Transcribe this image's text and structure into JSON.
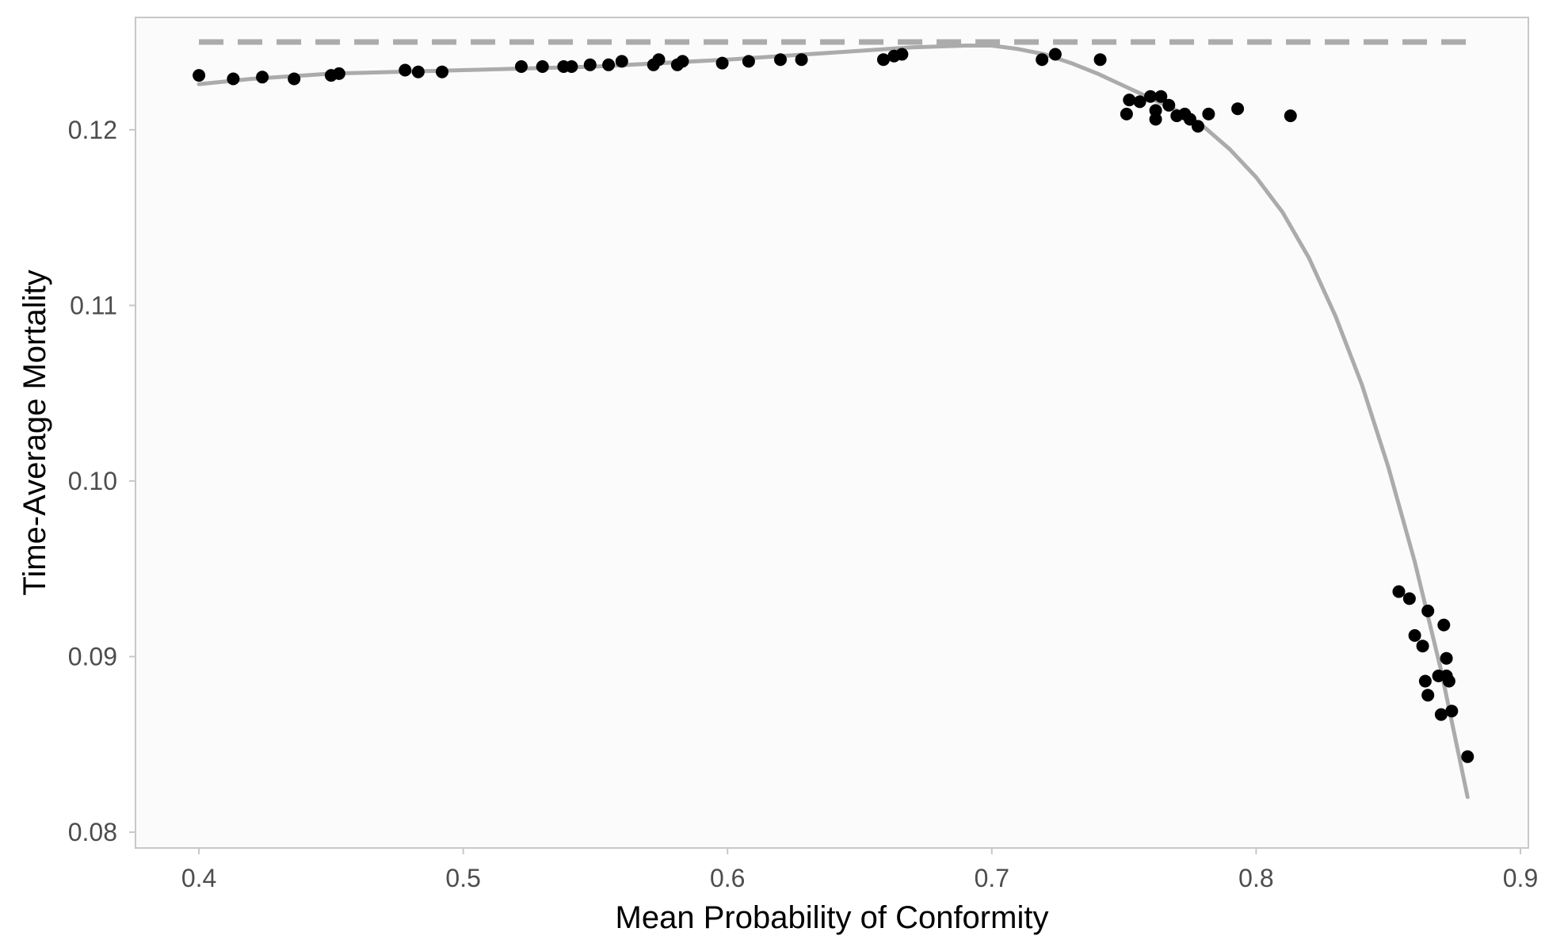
{
  "chart_data": {
    "type": "scatter",
    "title": "",
    "xlabel": "Mean Probability of Conformity",
    "ylabel": "Time-Average Mortality",
    "xlim": [
      0.376,
      0.903
    ],
    "ylim": [
      0.0791,
      0.1264
    ],
    "x_ticks": [
      {
        "value": 0.4,
        "label": "0.4"
      },
      {
        "value": 0.5,
        "label": "0.5"
      },
      {
        "value": 0.6,
        "label": "0.6"
      },
      {
        "value": 0.7,
        "label": "0.7"
      },
      {
        "value": 0.8,
        "label": "0.8"
      },
      {
        "value": 0.9,
        "label": "0.9"
      }
    ],
    "y_ticks": [
      {
        "value": 0.08,
        "label": "0.08"
      },
      {
        "value": 0.09,
        "label": "0.09"
      },
      {
        "value": 0.1,
        "label": "0.10"
      },
      {
        "value": 0.11,
        "label": "0.11"
      },
      {
        "value": 0.12,
        "label": "0.12"
      }
    ],
    "grid": false,
    "colors": {
      "panel_background": "#fbfbfb",
      "panel_border": "#c8c8c8",
      "points": "#000000",
      "fit_line": "#ababab",
      "reference_line": "#ababab"
    },
    "reference_line": {
      "style": "dashed",
      "y": 0.125,
      "x_start": 0.4,
      "x_end": 0.88
    },
    "fit_line": {
      "style": "solid",
      "x": [
        0.4,
        0.42,
        0.45,
        0.5,
        0.55,
        0.6,
        0.65,
        0.67,
        0.69,
        0.7,
        0.71,
        0.72,
        0.73,
        0.74,
        0.75,
        0.76,
        0.77,
        0.78,
        0.79,
        0.8,
        0.81,
        0.82,
        0.83,
        0.84,
        0.85,
        0.86,
        0.87,
        0.88
      ],
      "y": [
        0.1226,
        0.1229,
        0.1232,
        0.1234,
        0.1236,
        0.124,
        0.1245,
        0.1247,
        0.1248,
        0.1248,
        0.1246,
        0.1243,
        0.1238,
        0.1232,
        0.1225,
        0.1218,
        0.1211,
        0.1202,
        0.1189,
        0.1173,
        0.1153,
        0.1127,
        0.1094,
        0.1055,
        0.1008,
        0.0954,
        0.0892,
        0.082
      ]
    },
    "points": [
      {
        "x": 0.4,
        "y": 0.1231
      },
      {
        "x": 0.413,
        "y": 0.1229
      },
      {
        "x": 0.424,
        "y": 0.123
      },
      {
        "x": 0.436,
        "y": 0.1229
      },
      {
        "x": 0.45,
        "y": 0.1231
      },
      {
        "x": 0.453,
        "y": 0.1232
      },
      {
        "x": 0.478,
        "y": 0.1234
      },
      {
        "x": 0.483,
        "y": 0.1233
      },
      {
        "x": 0.492,
        "y": 0.1233
      },
      {
        "x": 0.522,
        "y": 0.1236
      },
      {
        "x": 0.53,
        "y": 0.1236
      },
      {
        "x": 0.538,
        "y": 0.1236
      },
      {
        "x": 0.541,
        "y": 0.1236
      },
      {
        "x": 0.548,
        "y": 0.1237
      },
      {
        "x": 0.555,
        "y": 0.1237
      },
      {
        "x": 0.56,
        "y": 0.1239
      },
      {
        "x": 0.572,
        "y": 0.1237
      },
      {
        "x": 0.574,
        "y": 0.124
      },
      {
        "x": 0.581,
        "y": 0.1237
      },
      {
        "x": 0.583,
        "y": 0.1239
      },
      {
        "x": 0.598,
        "y": 0.1238
      },
      {
        "x": 0.608,
        "y": 0.1239
      },
      {
        "x": 0.62,
        "y": 0.124
      },
      {
        "x": 0.628,
        "y": 0.124
      },
      {
        "x": 0.659,
        "y": 0.124
      },
      {
        "x": 0.663,
        "y": 0.1242
      },
      {
        "x": 0.666,
        "y": 0.1243
      },
      {
        "x": 0.719,
        "y": 0.124
      },
      {
        "x": 0.724,
        "y": 0.1243
      },
      {
        "x": 0.741,
        "y": 0.124
      },
      {
        "x": 0.751,
        "y": 0.1209
      },
      {
        "x": 0.752,
        "y": 0.1217
      },
      {
        "x": 0.756,
        "y": 0.1216
      },
      {
        "x": 0.76,
        "y": 0.1219
      },
      {
        "x": 0.762,
        "y": 0.1211
      },
      {
        "x": 0.762,
        "y": 0.1206
      },
      {
        "x": 0.764,
        "y": 0.1219
      },
      {
        "x": 0.767,
        "y": 0.1214
      },
      {
        "x": 0.77,
        "y": 0.1208
      },
      {
        "x": 0.773,
        "y": 0.1209
      },
      {
        "x": 0.775,
        "y": 0.1206
      },
      {
        "x": 0.778,
        "y": 0.1202
      },
      {
        "x": 0.782,
        "y": 0.1209
      },
      {
        "x": 0.793,
        "y": 0.1212
      },
      {
        "x": 0.813,
        "y": 0.1208
      },
      {
        "x": 0.854,
        "y": 0.0937
      },
      {
        "x": 0.858,
        "y": 0.0933
      },
      {
        "x": 0.86,
        "y": 0.0912
      },
      {
        "x": 0.863,
        "y": 0.0906
      },
      {
        "x": 0.864,
        "y": 0.0886
      },
      {
        "x": 0.865,
        "y": 0.0878
      },
      {
        "x": 0.865,
        "y": 0.0926
      },
      {
        "x": 0.869,
        "y": 0.0889
      },
      {
        "x": 0.87,
        "y": 0.0867
      },
      {
        "x": 0.871,
        "y": 0.0918
      },
      {
        "x": 0.872,
        "y": 0.0899
      },
      {
        "x": 0.872,
        "y": 0.0889
      },
      {
        "x": 0.873,
        "y": 0.0886
      },
      {
        "x": 0.874,
        "y": 0.0869
      },
      {
        "x": 0.88,
        "y": 0.0843
      }
    ]
  }
}
